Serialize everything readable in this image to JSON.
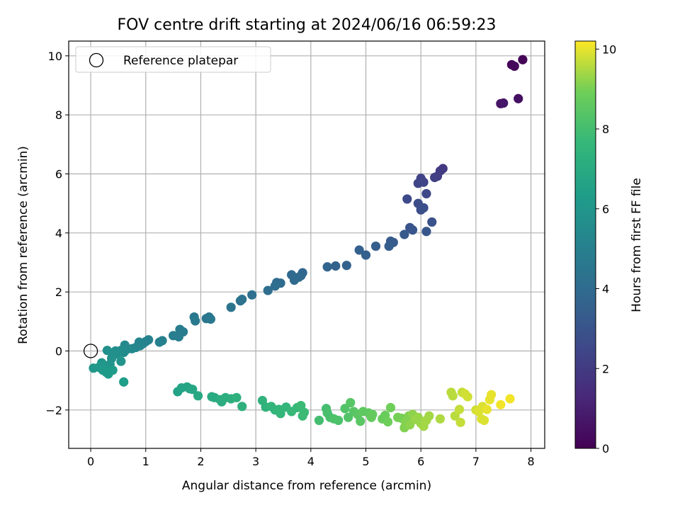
{
  "chart_data": {
    "type": "scatter",
    "title": "FOV centre drift starting at 2024/06/16 06:59:23",
    "xlabel": "Angular distance from reference (arcmin)",
    "ylabel": "Rotation from reference (arcmin)",
    "xlim": [
      -0.4,
      8.25
    ],
    "ylim": [
      -3.3,
      10.5
    ],
    "xticks": [
      0,
      1,
      2,
      3,
      4,
      5,
      6,
      7,
      8
    ],
    "yticks": [
      -2,
      0,
      2,
      4,
      6,
      8,
      10
    ],
    "xtick_labels": [
      "0",
      "1",
      "2",
      "3",
      "4",
      "5",
      "6",
      "7",
      "8"
    ],
    "ytick_labels": [
      "−2",
      "0",
      "2",
      "4",
      "6",
      "8",
      "10"
    ],
    "grid": true,
    "legend": {
      "position": "top-left",
      "entries": [
        "Reference platepar"
      ]
    },
    "reference_point": {
      "x": 0,
      "y": 0,
      "label": "Reference platepar"
    },
    "colorbar": {
      "label": "Hours from first FF file",
      "min": 0,
      "max": 10.2,
      "ticks": [
        0,
        2,
        4,
        6,
        8,
        10
      ],
      "tick_labels": [
        "0",
        "2",
        "4",
        "6",
        "8",
        "10"
      ],
      "colormap": "viridis"
    },
    "points": [
      [
        7.85,
        9.87,
        0.1
      ],
      [
        7.65,
        9.7,
        0.2
      ],
      [
        7.7,
        9.65,
        0.3
      ],
      [
        7.77,
        8.55,
        0.5
      ],
      [
        7.45,
        8.38,
        0.6
      ],
      [
        7.5,
        8.4,
        0.7
      ],
      [
        6.4,
        6.18,
        1.9
      ],
      [
        6.35,
        6.1,
        2.0
      ],
      [
        6.3,
        5.92,
        2.1
      ],
      [
        6.25,
        5.88,
        2.2
      ],
      [
        6.0,
        5.85,
        2.3
      ],
      [
        6.05,
        5.72,
        2.3
      ],
      [
        5.95,
        5.68,
        2.4
      ],
      [
        6.1,
        5.33,
        2.5
      ],
      [
        5.75,
        5.15,
        2.6
      ],
      [
        5.95,
        5.0,
        2.7
      ],
      [
        6.05,
        4.85,
        2.8
      ],
      [
        6.0,
        4.78,
        2.8
      ],
      [
        6.2,
        4.37,
        2.9
      ],
      [
        5.8,
        4.18,
        3.0
      ],
      [
        5.85,
        4.1,
        3.1
      ],
      [
        6.1,
        4.05,
        3.1
      ],
      [
        5.7,
        3.95,
        3.2
      ],
      [
        5.45,
        3.72,
        3.3
      ],
      [
        5.5,
        3.68,
        3.3
      ],
      [
        5.42,
        3.55,
        3.4
      ],
      [
        5.18,
        3.55,
        3.4
      ],
      [
        4.88,
        3.42,
        3.5
      ],
      [
        5.0,
        3.25,
        3.5
      ],
      [
        4.65,
        2.9,
        3.6
      ],
      [
        4.45,
        2.88,
        3.6
      ],
      [
        4.3,
        2.85,
        3.7
      ],
      [
        3.85,
        2.65,
        3.8
      ],
      [
        3.82,
        2.55,
        3.8
      ],
      [
        3.78,
        2.5,
        3.9
      ],
      [
        3.65,
        2.58,
        3.9
      ],
      [
        3.7,
        2.4,
        3.9
      ],
      [
        3.45,
        2.3,
        4.0
      ],
      [
        3.38,
        2.32,
        4.0
      ],
      [
        3.35,
        2.2,
        4.1
      ],
      [
        3.22,
        2.05,
        4.1
      ],
      [
        2.93,
        1.9,
        4.2
      ],
      [
        2.75,
        1.75,
        4.3
      ],
      [
        2.72,
        1.7,
        4.3
      ],
      [
        2.55,
        1.48,
        4.4
      ],
      [
        2.15,
        1.15,
        4.5
      ],
      [
        2.1,
        1.1,
        4.5
      ],
      [
        2.18,
        1.08,
        4.6
      ],
      [
        1.88,
        1.15,
        4.6
      ],
      [
        1.9,
        1.02,
        4.7
      ],
      [
        1.62,
        0.73,
        4.8
      ],
      [
        1.68,
        0.65,
        4.8
      ],
      [
        1.5,
        0.52,
        4.9
      ],
      [
        1.6,
        0.48,
        4.9
      ],
      [
        1.3,
        0.35,
        5.0
      ],
      [
        1.25,
        0.3,
        5.0
      ],
      [
        1.05,
        0.38,
        5.1
      ],
      [
        1.0,
        0.32,
        5.1
      ],
      [
        0.95,
        0.25,
        5.2
      ],
      [
        0.88,
        0.3,
        5.2
      ],
      [
        0.9,
        0.18,
        5.3
      ],
      [
        0.82,
        0.12,
        5.3
      ],
      [
        0.75,
        0.08,
        5.4
      ],
      [
        0.62,
        0.2,
        5.4
      ],
      [
        0.65,
        0.05,
        5.5
      ],
      [
        0.6,
        -0.05,
        5.5
      ],
      [
        0.55,
        0.02,
        5.6
      ],
      [
        0.45,
        0.0,
        5.6
      ],
      [
        0.48,
        -0.1,
        5.7
      ],
      [
        0.4,
        -0.15,
        5.7
      ],
      [
        0.38,
        -0.25,
        5.8
      ],
      [
        0.3,
        0.02,
        5.8
      ],
      [
        0.55,
        -0.35,
        5.9
      ],
      [
        0.35,
        -0.45,
        5.9
      ],
      [
        0.25,
        -0.5,
        6.0
      ],
      [
        0.2,
        -0.4,
        6.0
      ],
      [
        0.15,
        -0.55,
        6.1
      ],
      [
        0.05,
        -0.58,
        6.1
      ],
      [
        0.22,
        -0.65,
        6.2
      ],
      [
        0.28,
        -0.72,
        6.2
      ],
      [
        0.4,
        -0.65,
        6.3
      ],
      [
        0.32,
        -0.78,
        6.3
      ],
      [
        0.6,
        -1.05,
        6.4
      ],
      [
        1.58,
        -1.38,
        6.6
      ],
      [
        1.65,
        -1.25,
        6.7
      ],
      [
        1.75,
        -1.22,
        6.7
      ],
      [
        1.85,
        -1.3,
        6.8
      ],
      [
        1.8,
        -1.28,
        6.8
      ],
      [
        1.95,
        -1.52,
        6.9
      ],
      [
        2.2,
        -1.55,
        7.0
      ],
      [
        2.25,
        -1.58,
        7.0
      ],
      [
        2.35,
        -1.65,
        7.1
      ],
      [
        2.38,
        -1.72,
        7.1
      ],
      [
        2.45,
        -1.58,
        7.2
      ],
      [
        2.55,
        -1.62,
        7.2
      ],
      [
        2.65,
        -1.58,
        7.3
      ],
      [
        2.75,
        -1.88,
        7.3
      ],
      [
        3.12,
        -1.68,
        7.4
      ],
      [
        3.18,
        -1.9,
        7.4
      ],
      [
        3.28,
        -1.88,
        7.5
      ],
      [
        3.35,
        -2.0,
        7.5
      ],
      [
        3.42,
        -1.98,
        7.6
      ],
      [
        3.45,
        -2.12,
        7.6
      ],
      [
        3.55,
        -1.9,
        7.6
      ],
      [
        3.65,
        -2.05,
        7.7
      ],
      [
        3.75,
        -1.92,
        7.7
      ],
      [
        3.82,
        -1.85,
        7.8
      ],
      [
        3.88,
        -2.08,
        7.8
      ],
      [
        3.85,
        -2.2,
        7.8
      ],
      [
        4.15,
        -2.35,
        8.0
      ],
      [
        4.28,
        -1.95,
        8.0
      ],
      [
        4.3,
        -2.1,
        8.1
      ],
      [
        4.35,
        -2.25,
        8.1
      ],
      [
        4.42,
        -2.3,
        8.2
      ],
      [
        4.5,
        -2.35,
        8.2
      ],
      [
        4.62,
        -1.95,
        8.3
      ],
      [
        4.68,
        -2.25,
        8.3
      ],
      [
        4.72,
        -1.75,
        8.4
      ],
      [
        4.78,
        -2.05,
        8.4
      ],
      [
        4.85,
        -2.15,
        8.5
      ],
      [
        4.9,
        -2.38,
        8.5
      ],
      [
        4.95,
        -2.05,
        8.6
      ],
      [
        5.05,
        -2.1,
        8.6
      ],
      [
        5.1,
        -2.25,
        8.7
      ],
      [
        5.12,
        -2.15,
        8.7
      ],
      [
        5.3,
        -2.3,
        8.8
      ],
      [
        5.35,
        -2.18,
        8.8
      ],
      [
        5.4,
        -2.4,
        8.9
      ],
      [
        5.45,
        -1.92,
        8.9
      ],
      [
        5.58,
        -2.25,
        9.0
      ],
      [
        5.65,
        -2.28,
        9.0
      ],
      [
        5.7,
        -2.6,
        9.1
      ],
      [
        5.72,
        -2.4,
        9.1
      ],
      [
        5.78,
        -2.2,
        9.1
      ],
      [
        5.8,
        -2.5,
        9.2
      ],
      [
        5.85,
        -2.15,
        9.2
      ],
      [
        5.9,
        -2.32,
        9.3
      ],
      [
        5.95,
        -2.25,
        9.3
      ],
      [
        6.0,
        -2.45,
        9.3
      ],
      [
        6.05,
        -2.55,
        9.4
      ],
      [
        6.1,
        -2.35,
        9.4
      ],
      [
        6.15,
        -2.2,
        9.4
      ],
      [
        6.35,
        -2.3,
        9.5
      ],
      [
        6.55,
        -1.4,
        9.6
      ],
      [
        6.58,
        -1.52,
        9.6
      ],
      [
        6.62,
        -2.2,
        9.6
      ],
      [
        6.7,
        -1.98,
        9.7
      ],
      [
        6.72,
        -2.42,
        9.7
      ],
      [
        6.75,
        -1.4,
        9.7
      ],
      [
        6.8,
        -1.45,
        9.8
      ],
      [
        6.85,
        -1.55,
        9.8
      ],
      [
        7.0,
        -2.0,
        9.8
      ],
      [
        7.05,
        -2.05,
        9.9
      ],
      [
        7.1,
        -2.3,
        9.9
      ],
      [
        7.15,
        -2.35,
        9.9
      ],
      [
        7.12,
        -1.88,
        9.9
      ],
      [
        7.2,
        -1.98,
        10.0
      ],
      [
        7.25,
        -1.65,
        10.0
      ],
      [
        7.28,
        -1.48,
        10.0
      ],
      [
        7.45,
        -1.82,
        10.1
      ],
      [
        7.62,
        -1.62,
        10.1
      ]
    ]
  }
}
